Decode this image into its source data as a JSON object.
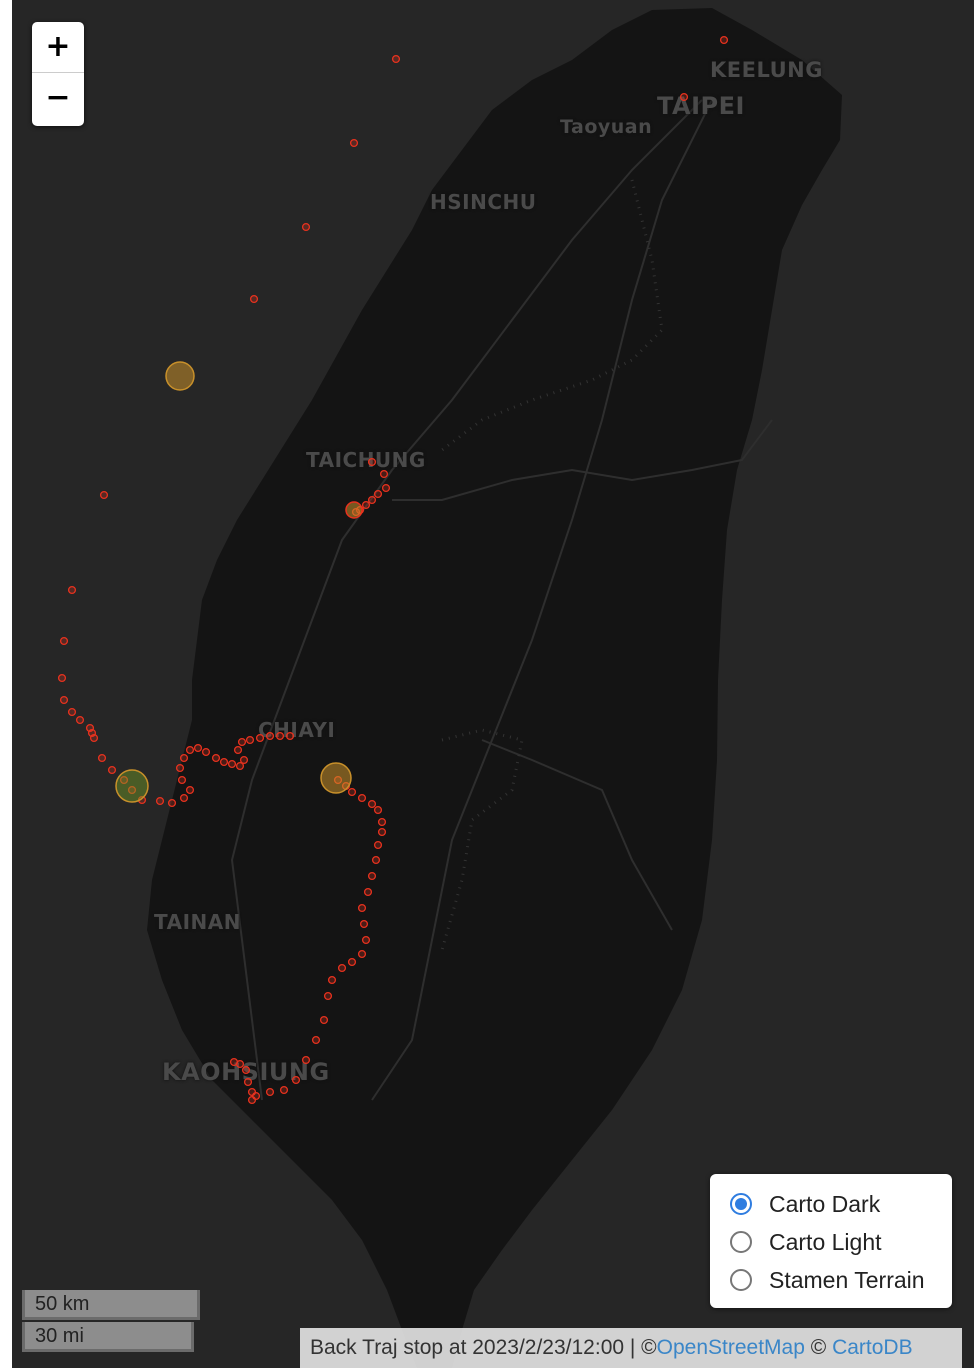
{
  "zoom": {
    "in_label": "+",
    "out_label": "−"
  },
  "city_labels": {
    "keelung": "KEELUNG",
    "taipei": "TAIPEI",
    "taoyuan": "Taoyuan",
    "hsinchu": "HSINCHU",
    "taichung": "TAICHUNG",
    "chiayi": "CHIAYI",
    "tainan": "TAINAN",
    "kaohsiung": "KAOHSIUNG"
  },
  "layer_control": {
    "options": [
      {
        "label": "Carto Dark",
        "selected": true
      },
      {
        "label": "Carto Light",
        "selected": false
      },
      {
        "label": "Stamen Terrain",
        "selected": false
      }
    ]
  },
  "scale": {
    "metric": "50 km",
    "imperial": "30 mi"
  },
  "attribution": {
    "prefix": "Back Traj stop at 2023/2/23/12:00 | ©",
    "osm_link": "OpenStreetMap",
    "separator": " © ",
    "carto_link": "CartoDB"
  },
  "colors": {
    "land": "#141414",
    "sea": "#262626",
    "trajectory_point": "#e8321e",
    "stop_marker": "#c8902a",
    "selected_radio": "#2f7de0",
    "link": "#3a86c8"
  },
  "markers": {
    "trajectory_points": "trajectory-point",
    "stop_points": "stop-marker"
  }
}
